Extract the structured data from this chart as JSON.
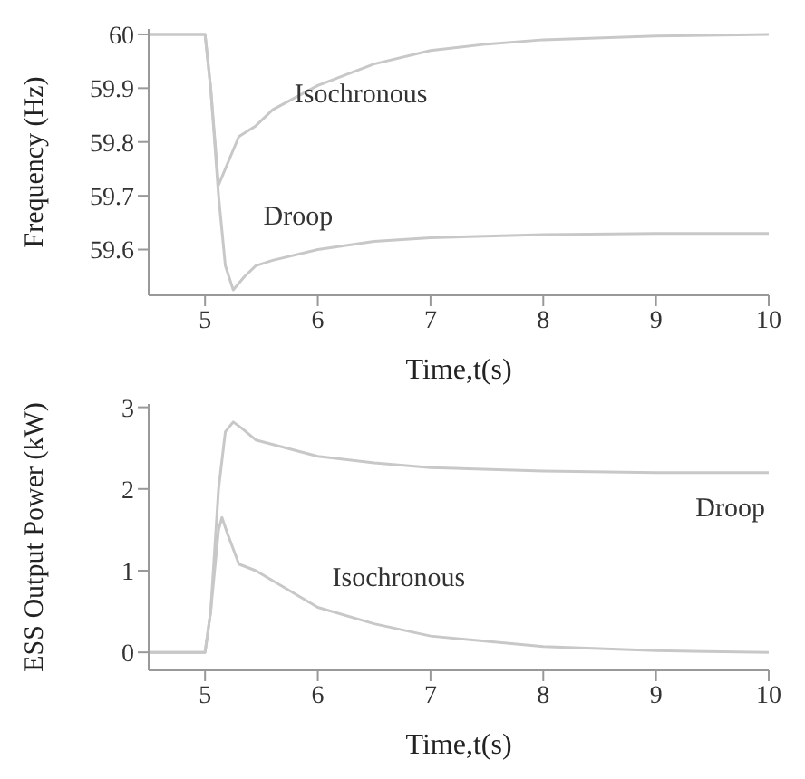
{
  "chart_data": [
    {
      "type": "line",
      "xlabel": "Time,t(s)",
      "ylabel": "Frequency (Hz)",
      "xlim": [
        4.5,
        10
      ],
      "ylim": [
        59.515,
        60.01
      ],
      "xticks": [
        5,
        6,
        7,
        8,
        9,
        10
      ],
      "yticks": [
        59.6,
        59.7,
        59.8,
        59.9,
        60
      ],
      "grid": false,
      "legend": false,
      "marker": "none",
      "line_style": "solid",
      "series": [
        {
          "name": "Isochronous",
          "color": "#c8c8c8",
          "x": [
            4.5,
            5,
            5.05,
            5.12,
            5.18,
            5.3,
            5.45,
            5.6,
            6,
            6.5,
            7,
            7.5,
            8,
            9,
            10
          ],
          "values": [
            60,
            60,
            59.9,
            59.72,
            59.75,
            59.81,
            59.83,
            59.86,
            59.905,
            59.945,
            59.97,
            59.982,
            59.99,
            59.997,
            60
          ]
        },
        {
          "name": "Droop",
          "color": "#c8c8c8",
          "x": [
            4.5,
            5,
            5.05,
            5.12,
            5.18,
            5.25,
            5.35,
            5.45,
            5.6,
            6,
            6.5,
            7,
            8,
            9,
            10
          ],
          "values": [
            60,
            60,
            59.9,
            59.7,
            59.57,
            59.525,
            59.55,
            59.57,
            59.58,
            59.6,
            59.615,
            59.622,
            59.628,
            59.63,
            59.63
          ]
        }
      ]
    },
    {
      "type": "line",
      "xlabel": "Time,t(s)",
      "ylabel": "ESS Output Power (kW)",
      "xlim": [
        4.5,
        10
      ],
      "ylim": [
        -0.22,
        3.04
      ],
      "xticks": [
        5,
        6,
        7,
        8,
        9,
        10
      ],
      "yticks": [
        0,
        1,
        2,
        3
      ],
      "grid": false,
      "legend": false,
      "marker": "none",
      "line_style": "solid",
      "series": [
        {
          "name": "Droop",
          "color": "#c8c8c8",
          "x": [
            4.5,
            5,
            5.05,
            5.12,
            5.18,
            5.25,
            5.32,
            5.45,
            6,
            6.5,
            7,
            8,
            9,
            10
          ],
          "values": [
            0,
            0,
            0.5,
            2.0,
            2.7,
            2.82,
            2.75,
            2.6,
            2.4,
            2.32,
            2.26,
            2.22,
            2.2,
            2.2
          ]
        },
        {
          "name": "Isochronous",
          "color": "#c8c8c8",
          "x": [
            4.5,
            5,
            5.05,
            5.12,
            5.15,
            5.2,
            5.3,
            5.45,
            6,
            6.5,
            7,
            8,
            9,
            10
          ],
          "values": [
            0,
            0,
            0.5,
            1.5,
            1.65,
            1.45,
            1.08,
            1.0,
            0.55,
            0.35,
            0.2,
            0.07,
            0.02,
            0
          ]
        }
      ]
    }
  ]
}
